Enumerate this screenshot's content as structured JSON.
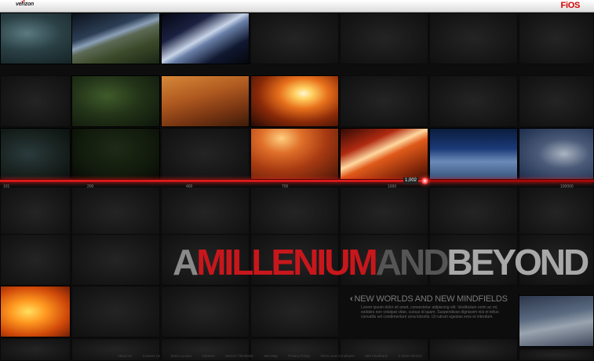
{
  "header": {
    "left_logo": "verizon",
    "right_logo": "FiOS"
  },
  "timeline": {
    "current_year": "1,002",
    "ticks": [
      "101",
      "200",
      "400",
      "700",
      "1000",
      "100000"
    ],
    "accent_color": "#e01010"
  },
  "headline": {
    "words": [
      "A",
      "MILLENIUM",
      "AND",
      "BEYOND"
    ]
  },
  "section": {
    "title": "NEW WORLDS AND NEW MINDFIELDS",
    "body": "Lorem ipsum dolor sit amet, consectetur adipiscing elit. Vestibulum enim ac mi, sodales non volutpat vitae, cursus id quam. Suspendisse dignissim nisi et tellus convallis vel condimentum urna lobortis. Ut rutrum egestas eros et interdum."
  },
  "footer": {
    "links": [
      "About Us",
      "Contact Us",
      "Store Locator",
      "Careers",
      "Verizon ThinkMob",
      "Site Map",
      "Privacy Policy",
      "Terms and Conditions",
      "Site Feedback",
      "© 2010 Verizon"
    ]
  }
}
